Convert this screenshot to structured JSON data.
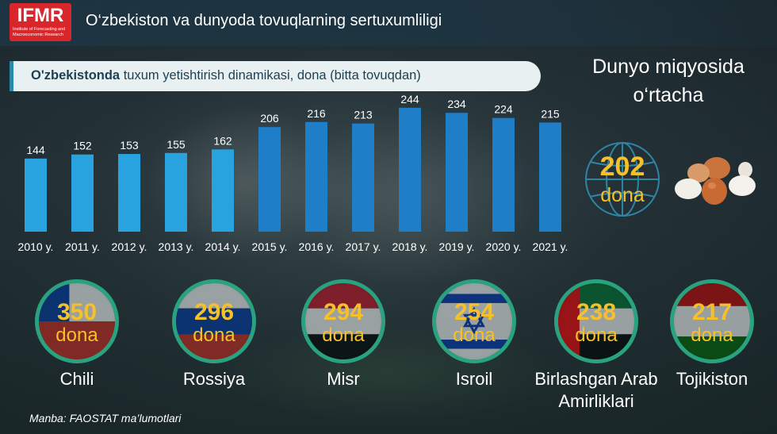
{
  "header": {
    "logo": "IFMR",
    "logo_subtitle": "Institute of Forecasting and Macroeconomic Research",
    "title": "O‘zbekiston va dunyoda tovuqlarning sertuxumliligi"
  },
  "chart_data": {
    "type": "bar",
    "title_bold": "O'zbekistonda",
    "title_rest": " tuxum yetishtirish dinamikasi, dona (bitta tovuqdan)",
    "categories": [
      "2010 y.",
      "2011 y.",
      "2012 y.",
      "2013 y.",
      "2014 y.",
      "2015 y.",
      "2016 y.",
      "2017 y.",
      "2018 y.",
      "2019 y.",
      "2020 y.",
      "2021 y."
    ],
    "values": [
      144,
      152,
      153,
      155,
      162,
      206,
      216,
      213,
      244,
      234,
      224,
      215
    ],
    "xlabel": "",
    "ylabel": "",
    "ylim": [
      0,
      250
    ],
    "grid": false,
    "colors": {
      "early": "#29a3e0",
      "late": "#1f7ec8"
    }
  },
  "world": {
    "title_line1": "Dunyo miqyosida",
    "title_line2": "o‘rtacha",
    "value": "202",
    "unit": "dona",
    "icon": "globe-icon",
    "image": "eggs-icon"
  },
  "countries": [
    {
      "name": "Chili",
      "value": "350",
      "unit": "dona",
      "flag": "chile-flag-icon"
    },
    {
      "name": "Rossiya",
      "value": "296",
      "unit": "dona",
      "flag": "russia-flag-icon"
    },
    {
      "name": "Misr",
      "value": "294",
      "unit": "dona",
      "flag": "egypt-flag-icon"
    },
    {
      "name": "Isroil",
      "value": "254",
      "unit": "dona",
      "flag": "israel-flag-icon"
    },
    {
      "name": "Birlashgan Arab Amirliklari",
      "value": "238",
      "unit": "dona",
      "flag": "uae-flag-icon"
    },
    {
      "name": "Tojikiston",
      "value": "217",
      "unit": "dona",
      "flag": "tajikistan-flag-icon"
    }
  ],
  "colors": {
    "accent": "#f5c02a",
    "ring": "#2aa27f",
    "brand": "#d8262b"
  },
  "source": "Manba: FAOSTAT ma’lumotlari"
}
